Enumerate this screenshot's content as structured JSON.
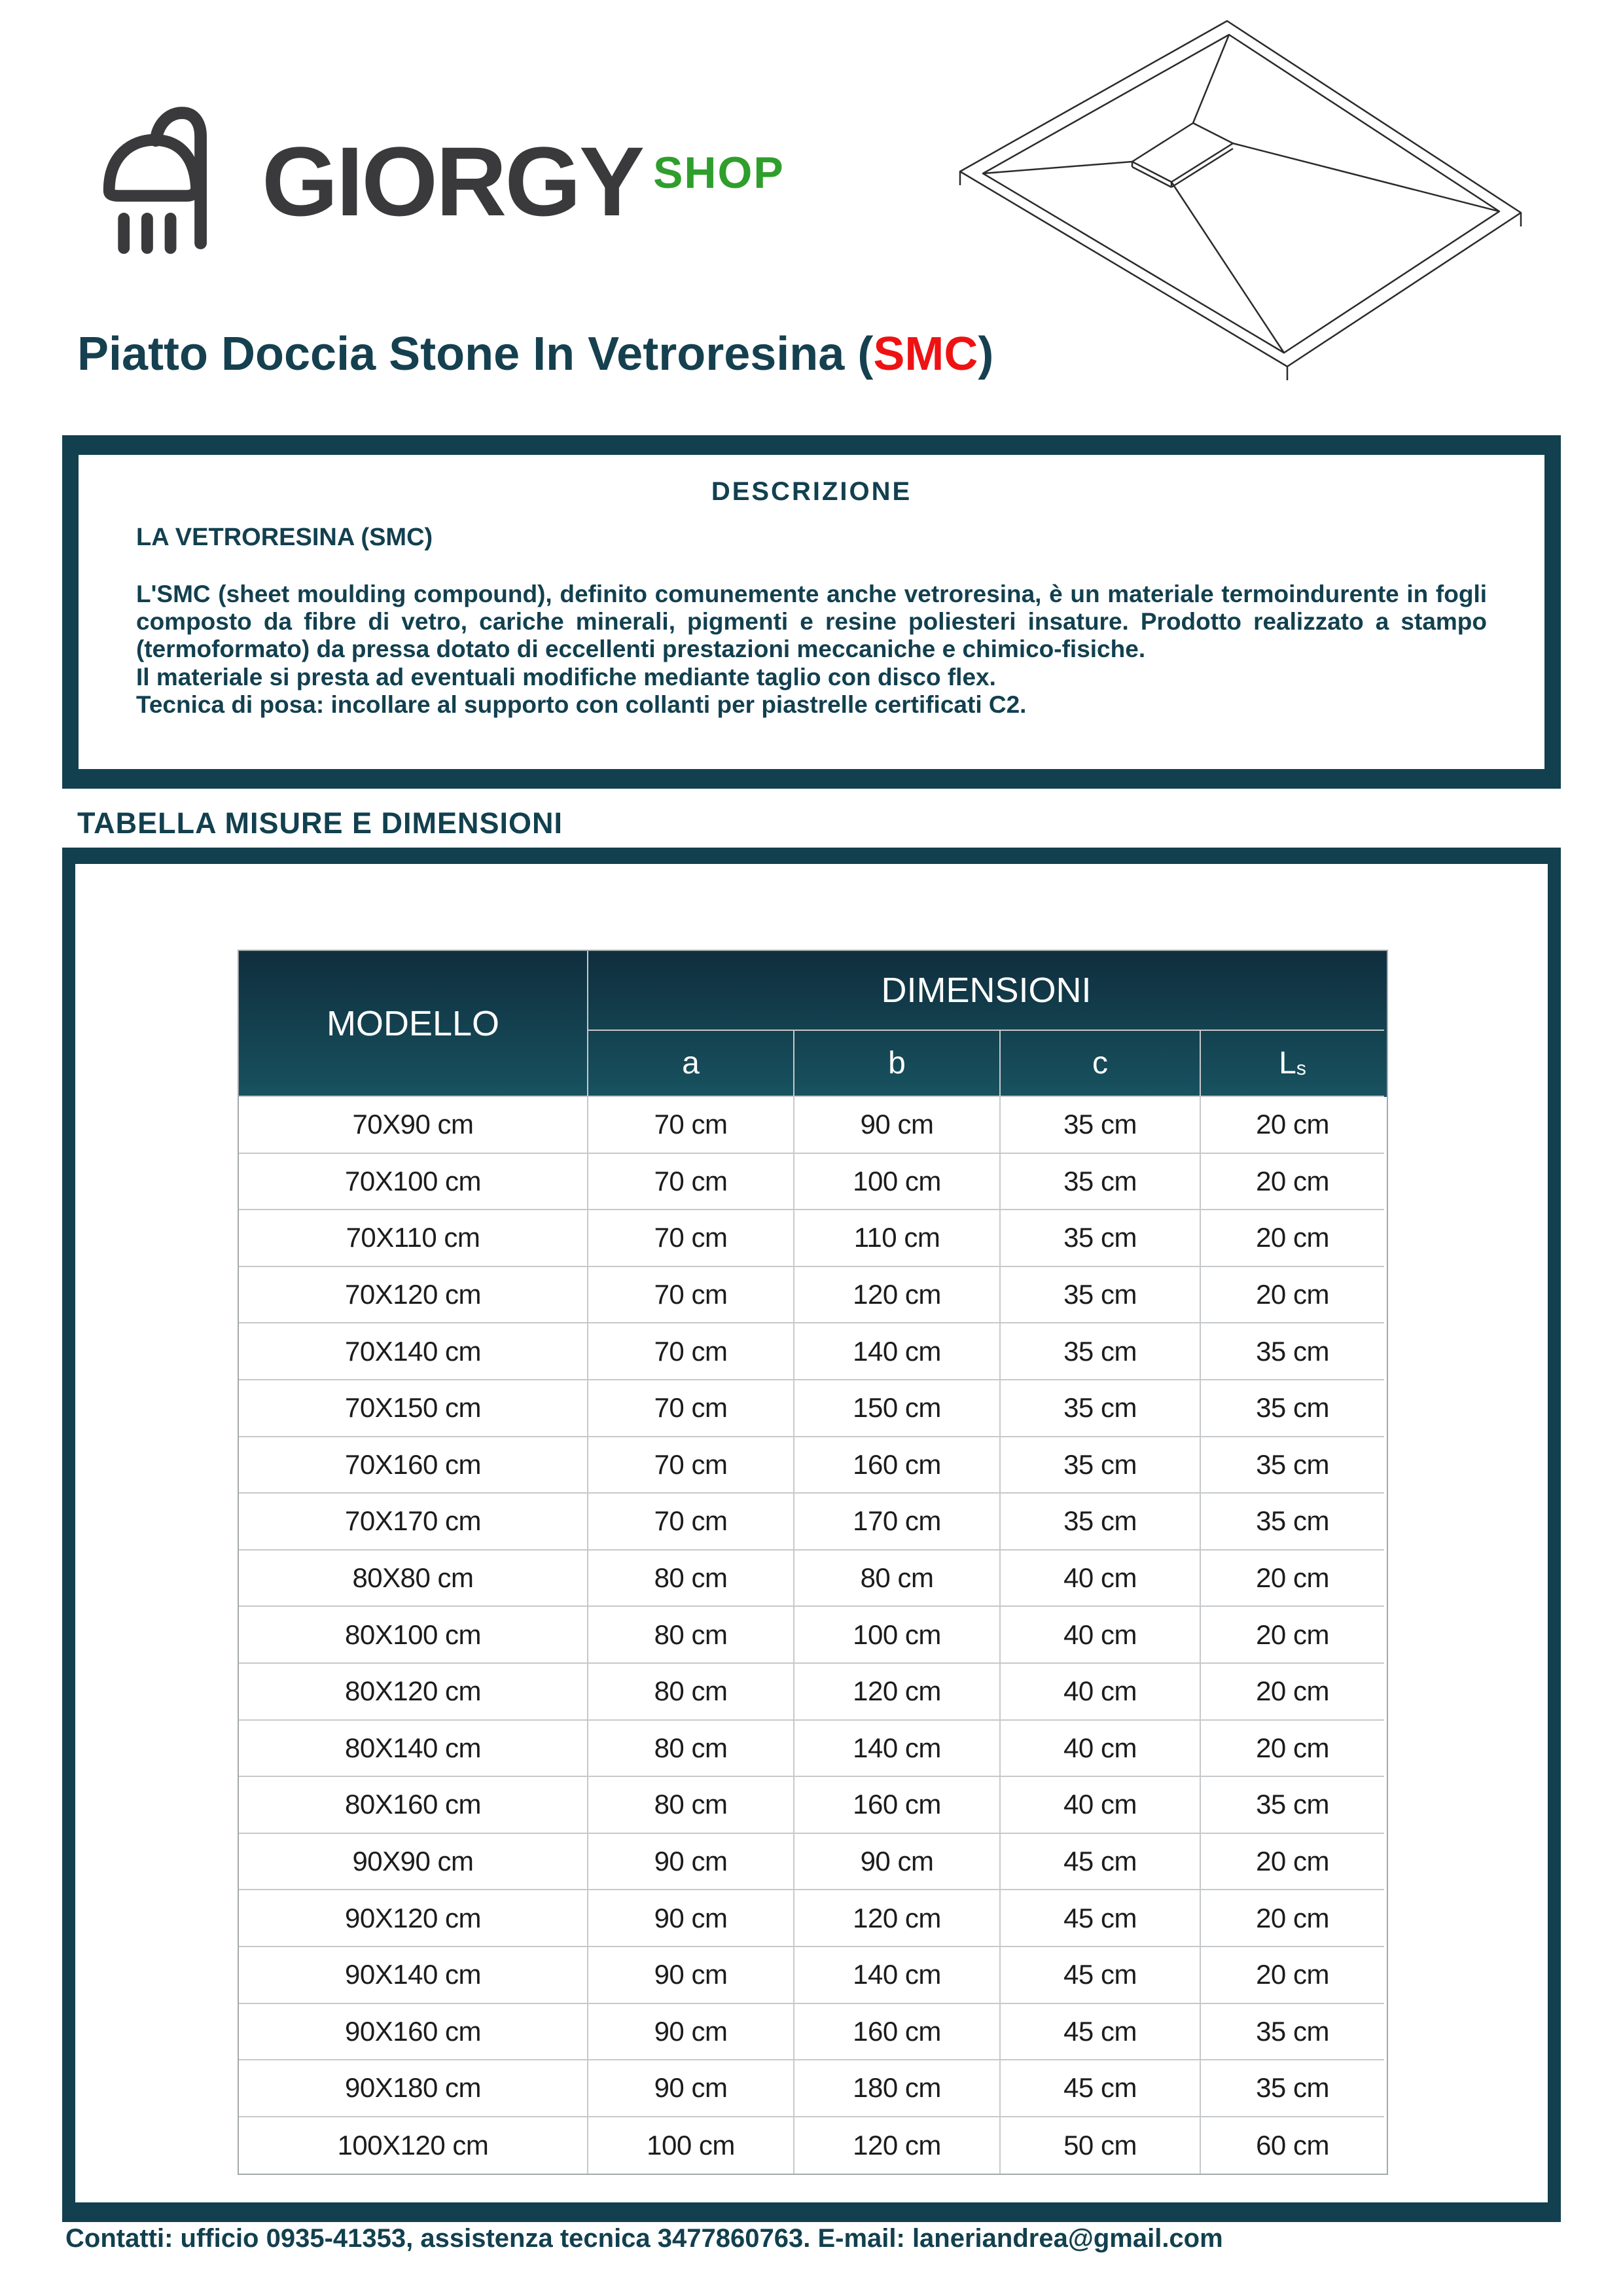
{
  "logo": {
    "brand": "GIORGY",
    "suffix": "SHOP"
  },
  "title": {
    "prefix": "Piatto Doccia Stone In Vetroresina (",
    "smc": "SMC",
    "suffix": ")"
  },
  "description": {
    "heading": "DESCRIZIONE",
    "subheading": "LA VETRORESINA (SMC)",
    "paragraph": "L'SMC (sheet moulding compound), definito comunemente anche vetroresina, è un materiale termoindurente in fogli composto da fibre di vetro, cariche minerali, pigmenti e resine poliesteri insature. Prodotto realizzato a stampo (termoformato) da pressa dotato di eccellenti prestazioni meccaniche e chimico-fisiche.",
    "line2": "Il materiale si presta ad eventuali modifiche mediante taglio con disco flex.",
    "line3": "Tecnica di posa: incollare al supporto con collanti per piastrelle certificati C2."
  },
  "table_section": {
    "heading": "TABELLA MISURE E DIMENSIONI"
  },
  "table": {
    "col_model": "MODELLO",
    "col_group": "DIMENSIONI",
    "sub_cols": [
      "a",
      "b",
      "c"
    ],
    "ls": {
      "main": "L",
      "sub": "s"
    },
    "rows": [
      [
        "70X90 cm",
        "70 cm",
        "90 cm",
        "35 cm",
        "20 cm"
      ],
      [
        "70X100 cm",
        "70 cm",
        "100 cm",
        "35 cm",
        "20 cm"
      ],
      [
        "70X110 cm",
        "70 cm",
        "110 cm",
        "35 cm",
        "20 cm"
      ],
      [
        "70X120 cm",
        "70 cm",
        "120 cm",
        "35 cm",
        "20 cm"
      ],
      [
        "70X140 cm",
        "70 cm",
        "140 cm",
        "35 cm",
        "35 cm"
      ],
      [
        "70X150 cm",
        "70 cm",
        "150 cm",
        "35 cm",
        "35 cm"
      ],
      [
        "70X160 cm",
        "70 cm",
        "160 cm",
        "35 cm",
        "35 cm"
      ],
      [
        "70X170 cm",
        "70 cm",
        "170 cm",
        "35 cm",
        "35 cm"
      ],
      [
        "80X80 cm",
        "80 cm",
        "80 cm",
        "40 cm",
        "20 cm"
      ],
      [
        "80X100 cm",
        "80 cm",
        "100 cm",
        "40 cm",
        "20 cm"
      ],
      [
        "80X120 cm",
        "80 cm",
        "120 cm",
        "40 cm",
        "20 cm"
      ],
      [
        "80X140 cm",
        "80 cm",
        "140 cm",
        "40 cm",
        "20 cm"
      ],
      [
        "80X160 cm",
        "80 cm",
        "160 cm",
        "40 cm",
        "35 cm"
      ],
      [
        "90X90 cm",
        "90 cm",
        "90 cm",
        "45 cm",
        "20 cm"
      ],
      [
        "90X120 cm",
        "90 cm",
        "120 cm",
        "45 cm",
        "20 cm"
      ],
      [
        "90X140 cm",
        "90 cm",
        "140 cm",
        "45 cm",
        "20 cm"
      ],
      [
        "90X160 cm",
        "90 cm",
        "160 cm",
        "45 cm",
        "35 cm"
      ],
      [
        "90X180 cm",
        "90 cm",
        "180 cm",
        "45 cm",
        "35 cm"
      ],
      [
        "100X120 cm",
        "100 cm",
        "120 cm",
        "50 cm",
        "60 cm"
      ]
    ]
  },
  "footer": {
    "text": "Contatti: ufficio 0935-41353, assistenza tecnica 3477860763.  E-mail: laneriandrea@gmail.com"
  },
  "colors": {
    "teal": "#12404F",
    "header_gradient_top": "#0F2E3D",
    "header_gradient_bottom": "#185260",
    "red": "#EE1212",
    "green": "#2F9E2C",
    "brand_gray": "#3A3A3C"
  },
  "icons": [
    "shower-icon",
    "shower-tray-drawing"
  ]
}
